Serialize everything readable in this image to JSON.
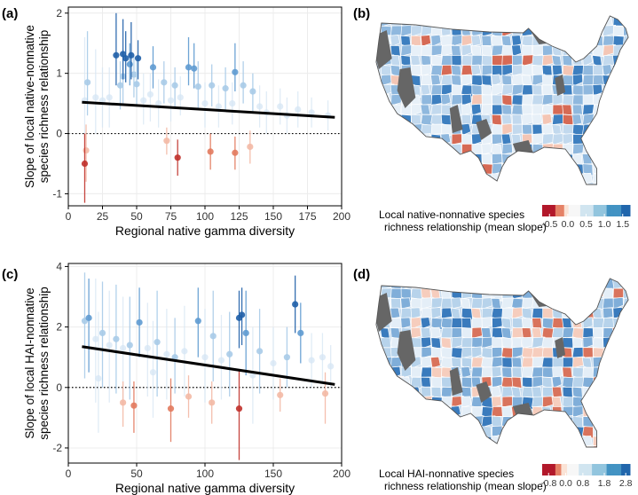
{
  "panels": {
    "a": "(a)",
    "b": "(b)",
    "c": "(c)",
    "d": "(d)"
  },
  "colors": {
    "strong_pos": "#1f5fa8",
    "mid_pos": "#5f9bd1",
    "light_pos": "#a9cbe8",
    "faint_pos": "#d6e6f4",
    "strong_neg": "#c0312b",
    "mid_neg": "#e27a5e",
    "light_neg": "#f3b9a5",
    "regression": "#000000",
    "map_missing": "#666666"
  },
  "chart_data": [
    {
      "id": "a",
      "type": "scatter",
      "xlabel": "Regional native gamma diversity",
      "ylabel": [
        "Slope of local native-nonnative",
        "species richness relationship"
      ],
      "xlim": [
        0,
        200
      ],
      "ylim": [
        -1.2,
        2.1
      ],
      "xticks": [
        0,
        25,
        50,
        75,
        100,
        125,
        150,
        175,
        200
      ],
      "yticks": [
        -1,
        0,
        1,
        2
      ],
      "zero_line": "dotted",
      "grid": true,
      "regression": {
        "x": [
          10,
          195
        ],
        "y": [
          0.52,
          0.27
        ]
      },
      "points": [
        {
          "x": 35,
          "y": 1.3,
          "lo": 0.8,
          "hi": 2.0,
          "c": "strong_pos"
        },
        {
          "x": 40,
          "y": 1.32,
          "lo": 0.9,
          "hi": 1.9,
          "c": "strong_pos"
        },
        {
          "x": 42,
          "y": 1.25,
          "lo": 0.85,
          "hi": 1.7,
          "c": "strong_pos"
        },
        {
          "x": 46,
          "y": 1.3,
          "lo": 0.9,
          "hi": 1.85,
          "c": "strong_pos"
        },
        {
          "x": 51,
          "y": 1.25,
          "lo": 0.9,
          "hi": 1.55,
          "c": "strong_pos"
        },
        {
          "x": 45,
          "y": 1.15,
          "lo": 0.8,
          "hi": 1.5,
          "c": "mid_pos"
        },
        {
          "x": 62,
          "y": 1.1,
          "lo": 0.75,
          "hi": 1.45,
          "c": "mid_pos"
        },
        {
          "x": 88,
          "y": 1.1,
          "lo": 0.8,
          "hi": 1.6,
          "c": "mid_pos"
        },
        {
          "x": 92,
          "y": 1.08,
          "lo": 0.75,
          "hi": 1.5,
          "c": "mid_pos"
        },
        {
          "x": 122,
          "y": 1.02,
          "lo": 0.7,
          "hi": 1.5,
          "c": "mid_pos"
        },
        {
          "x": 40,
          "y": 0.95,
          "lo": 0.5,
          "hi": 1.4,
          "c": "light_pos"
        },
        {
          "x": 48,
          "y": 0.98,
          "lo": 0.6,
          "hi": 1.3,
          "c": "light_pos"
        },
        {
          "x": 38,
          "y": 0.8,
          "lo": 0.4,
          "hi": 1.2,
          "c": "light_pos"
        },
        {
          "x": 50,
          "y": 0.82,
          "lo": 0.45,
          "hi": 1.2,
          "c": "light_pos"
        },
        {
          "x": 70,
          "y": 0.85,
          "lo": 0.5,
          "hi": 1.2,
          "c": "light_pos"
        },
        {
          "x": 78,
          "y": 0.8,
          "lo": 0.45,
          "hi": 1.1,
          "c": "light_pos"
        },
        {
          "x": 95,
          "y": 0.78,
          "lo": 0.4,
          "hi": 1.2,
          "c": "light_pos"
        },
        {
          "x": 105,
          "y": 0.8,
          "lo": 0.45,
          "hi": 1.15,
          "c": "light_pos"
        },
        {
          "x": 115,
          "y": 0.75,
          "lo": 0.4,
          "hi": 1.1,
          "c": "light_pos"
        },
        {
          "x": 128,
          "y": 0.8,
          "lo": 0.5,
          "hi": 1.2,
          "c": "light_pos"
        },
        {
          "x": 135,
          "y": 0.7,
          "lo": 0.35,
          "hi": 1.0,
          "c": "light_pos"
        },
        {
          "x": 14,
          "y": 0.85,
          "lo": 0.3,
          "hi": 1.7,
          "c": "light_pos"
        },
        {
          "x": 12,
          "y": 0.55,
          "lo": -0.1,
          "hi": 1.6,
          "c": "faint_pos"
        },
        {
          "x": 20,
          "y": 0.6,
          "lo": 0.0,
          "hi": 1.4,
          "c": "faint_pos"
        },
        {
          "x": 25,
          "y": 0.55,
          "lo": 0.1,
          "hi": 1.1,
          "c": "faint_pos"
        },
        {
          "x": 30,
          "y": 0.6,
          "lo": 0.1,
          "hi": 1.1,
          "c": "faint_pos"
        },
        {
          "x": 55,
          "y": 0.55,
          "lo": 0.15,
          "hi": 1.0,
          "c": "faint_pos"
        },
        {
          "x": 60,
          "y": 0.65,
          "lo": 0.2,
          "hi": 1.0,
          "c": "faint_pos"
        },
        {
          "x": 66,
          "y": 0.5,
          "lo": 0.1,
          "hi": 0.9,
          "c": "faint_pos"
        },
        {
          "x": 75,
          "y": 0.55,
          "lo": 0.2,
          "hi": 0.9,
          "c": "faint_pos"
        },
        {
          "x": 82,
          "y": 0.6,
          "lo": 0.3,
          "hi": 0.95,
          "c": "faint_pos"
        },
        {
          "x": 100,
          "y": 0.5,
          "lo": 0.1,
          "hi": 0.85,
          "c": "faint_pos"
        },
        {
          "x": 110,
          "y": 0.45,
          "lo": 0.1,
          "hi": 0.8,
          "c": "faint_pos"
        },
        {
          "x": 120,
          "y": 0.5,
          "lo": 0.15,
          "hi": 0.85,
          "c": "faint_pos"
        },
        {
          "x": 140,
          "y": 0.45,
          "lo": 0.1,
          "hi": 0.8,
          "c": "faint_pos"
        },
        {
          "x": 145,
          "y": 0.35,
          "lo": 0.0,
          "hi": 0.7,
          "c": "faint_pos"
        },
        {
          "x": 155,
          "y": 0.45,
          "lo": 0.15,
          "hi": 0.75,
          "c": "faint_pos"
        },
        {
          "x": 160,
          "y": 0.3,
          "lo": 0.0,
          "hi": 0.6,
          "c": "faint_pos"
        },
        {
          "x": 168,
          "y": 0.4,
          "lo": 0.1,
          "hi": 0.7,
          "c": "faint_pos"
        },
        {
          "x": 178,
          "y": 0.35,
          "lo": 0.1,
          "hi": 0.6,
          "c": "faint_pos"
        },
        {
          "x": 190,
          "y": 0.3,
          "lo": 0.05,
          "hi": 0.55,
          "c": "faint_pos"
        },
        {
          "x": 12,
          "y": -0.5,
          "lo": -1.15,
          "hi": 0.0,
          "c": "strong_neg"
        },
        {
          "x": 13,
          "y": -0.28,
          "lo": -0.8,
          "hi": 0.15,
          "c": "light_neg"
        },
        {
          "x": 80,
          "y": -0.4,
          "lo": -0.7,
          "hi": -0.1,
          "c": "strong_neg"
        },
        {
          "x": 104,
          "y": -0.3,
          "lo": -0.6,
          "hi": 0.0,
          "c": "mid_neg"
        },
        {
          "x": 122,
          "y": -0.32,
          "lo": -0.6,
          "hi": -0.05,
          "c": "mid_neg"
        },
        {
          "x": 133,
          "y": -0.22,
          "lo": -0.5,
          "hi": 0.05,
          "c": "light_neg"
        },
        {
          "x": 72,
          "y": -0.12,
          "lo": -0.35,
          "hi": 0.1,
          "c": "light_neg"
        }
      ]
    },
    {
      "id": "c",
      "type": "scatter",
      "xlabel": "Regional native gamma diversity",
      "ylabel": [
        "Slope of local HAI-nonnative",
        "species richness relationship"
      ],
      "xlim": [
        0,
        200
      ],
      "ylim": [
        -2.5,
        4.1
      ],
      "xticks": [
        0,
        50,
        100,
        150,
        200
      ],
      "yticks": [
        -2,
        0,
        2,
        4
      ],
      "zero_line": "dotted",
      "grid": true,
      "regression": {
        "x": [
          10,
          195
        ],
        "y": [
          1.35,
          0.1
        ]
      },
      "points": [
        {
          "x": 12,
          "y": 2.2,
          "lo": 0.3,
          "hi": 3.8,
          "c": "light_pos"
        },
        {
          "x": 15,
          "y": 2.3,
          "lo": 0.5,
          "hi": 3.6,
          "c": "mid_pos"
        },
        {
          "x": 20,
          "y": 1.6,
          "lo": -0.5,
          "hi": 3.6,
          "c": "faint_pos"
        },
        {
          "x": 25,
          "y": 1.8,
          "lo": 0.0,
          "hi": 3.5,
          "c": "light_pos"
        },
        {
          "x": 30,
          "y": 1.4,
          "lo": -0.5,
          "hi": 3.2,
          "c": "faint_pos"
        },
        {
          "x": 35,
          "y": 1.6,
          "lo": -0.2,
          "hi": 3.4,
          "c": "light_pos"
        },
        {
          "x": 40,
          "y": 1.3,
          "lo": -0.6,
          "hi": 3.0,
          "c": "faint_pos"
        },
        {
          "x": 45,
          "y": 1.4,
          "lo": -0.4,
          "hi": 3.0,
          "c": "light_pos"
        },
        {
          "x": 52,
          "y": 2.15,
          "lo": 1.0,
          "hi": 3.3,
          "c": "mid_pos"
        },
        {
          "x": 58,
          "y": 1.3,
          "lo": -0.3,
          "hi": 2.8,
          "c": "faint_pos"
        },
        {
          "x": 65,
          "y": 1.5,
          "lo": -0.3,
          "hi": 3.2,
          "c": "light_pos"
        },
        {
          "x": 72,
          "y": 1.1,
          "lo": -0.4,
          "hi": 2.6,
          "c": "faint_pos"
        },
        {
          "x": 78,
          "y": 1.0,
          "lo": -0.2,
          "hi": 2.3,
          "c": "light_pos"
        },
        {
          "x": 85,
          "y": 1.2,
          "lo": -0.3,
          "hi": 2.7,
          "c": "faint_pos"
        },
        {
          "x": 95,
          "y": 2.2,
          "lo": 1.0,
          "hi": 3.3,
          "c": "mid_pos"
        },
        {
          "x": 100,
          "y": 1.0,
          "lo": -0.5,
          "hi": 2.6,
          "c": "faint_pos"
        },
        {
          "x": 106,
          "y": 1.7,
          "lo": 0.2,
          "hi": 3.2,
          "c": "light_pos"
        },
        {
          "x": 112,
          "y": 0.9,
          "lo": -0.4,
          "hi": 2.4,
          "c": "faint_pos"
        },
        {
          "x": 118,
          "y": 1.1,
          "lo": -0.3,
          "hi": 2.5,
          "c": "light_pos"
        },
        {
          "x": 125,
          "y": 2.3,
          "lo": 1.3,
          "hi": 3.2,
          "c": "strong_pos"
        },
        {
          "x": 127,
          "y": 2.4,
          "lo": 1.4,
          "hi": 3.3,
          "c": "strong_pos"
        },
        {
          "x": 130,
          "y": 1.8,
          "lo": 0.4,
          "hi": 3.2,
          "c": "mid_pos"
        },
        {
          "x": 140,
          "y": 1.2,
          "lo": -0.2,
          "hi": 2.6,
          "c": "light_pos"
        },
        {
          "x": 150,
          "y": 0.8,
          "lo": -0.4,
          "hi": 2.0,
          "c": "faint_pos"
        },
        {
          "x": 160,
          "y": 1.0,
          "lo": 0.0,
          "hi": 2.0,
          "c": "light_pos"
        },
        {
          "x": 166,
          "y": 2.75,
          "lo": 1.8,
          "hi": 3.7,
          "c": "strong_pos"
        },
        {
          "x": 170,
          "y": 1.8,
          "lo": 0.8,
          "hi": 2.8,
          "c": "mid_pos"
        },
        {
          "x": 178,
          "y": 0.9,
          "lo": 0.0,
          "hi": 1.8,
          "c": "faint_pos"
        },
        {
          "x": 186,
          "y": 1.0,
          "lo": 0.2,
          "hi": 1.8,
          "c": "faint_pos"
        },
        {
          "x": 192,
          "y": 0.7,
          "lo": 0.0,
          "hi": 1.4,
          "c": "faint_pos"
        },
        {
          "x": 40,
          "y": -0.5,
          "lo": -1.3,
          "hi": 0.2,
          "c": "light_neg"
        },
        {
          "x": 48,
          "y": -0.6,
          "lo": -1.5,
          "hi": 0.2,
          "c": "mid_neg"
        },
        {
          "x": 75,
          "y": -0.7,
          "lo": -1.8,
          "hi": 0.3,
          "c": "mid_neg"
        },
        {
          "x": 88,
          "y": -0.3,
          "lo": -1.0,
          "hi": 0.4,
          "c": "light_neg"
        },
        {
          "x": 105,
          "y": -0.5,
          "lo": -1.2,
          "hi": 0.2,
          "c": "light_neg"
        },
        {
          "x": 125,
          "y": -0.7,
          "lo": -2.4,
          "hi": 0.6,
          "c": "strong_neg"
        },
        {
          "x": 155,
          "y": -0.25,
          "lo": -0.8,
          "hi": 0.3,
          "c": "light_neg"
        },
        {
          "x": 188,
          "y": -0.2,
          "lo": -1.2,
          "hi": 0.5,
          "c": "light_neg"
        },
        {
          "x": 22,
          "y": 0.3,
          "lo": -1.5,
          "hi": 2.5,
          "c": "faint_pos"
        },
        {
          "x": 62,
          "y": 0.5,
          "lo": -1.0,
          "hi": 2.2,
          "c": "faint_pos"
        },
        {
          "x": 135,
          "y": 0.4,
          "lo": -1.2,
          "hi": 2.0,
          "c": "faint_pos"
        }
      ]
    },
    {
      "id": "b",
      "type": "choropleth",
      "legend_title": [
        "Local native-nonnative species",
        "richness relationship (mean slope)"
      ],
      "colorbar_min": -0.7,
      "colorbar_max": 1.7,
      "ticks": [
        "-0.5",
        "0.0",
        "0.5",
        "1.0",
        "1.5"
      ]
    },
    {
      "id": "d",
      "type": "choropleth",
      "legend_title": [
        "Local HAI-nonnative species",
        "richness relationship (mean slope)"
      ],
      "colorbar_min": -1.1,
      "colorbar_max": 3.0,
      "ticks": [
        "-0.8",
        "0.0",
        "0.8",
        "1.8",
        "2.8"
      ]
    }
  ]
}
